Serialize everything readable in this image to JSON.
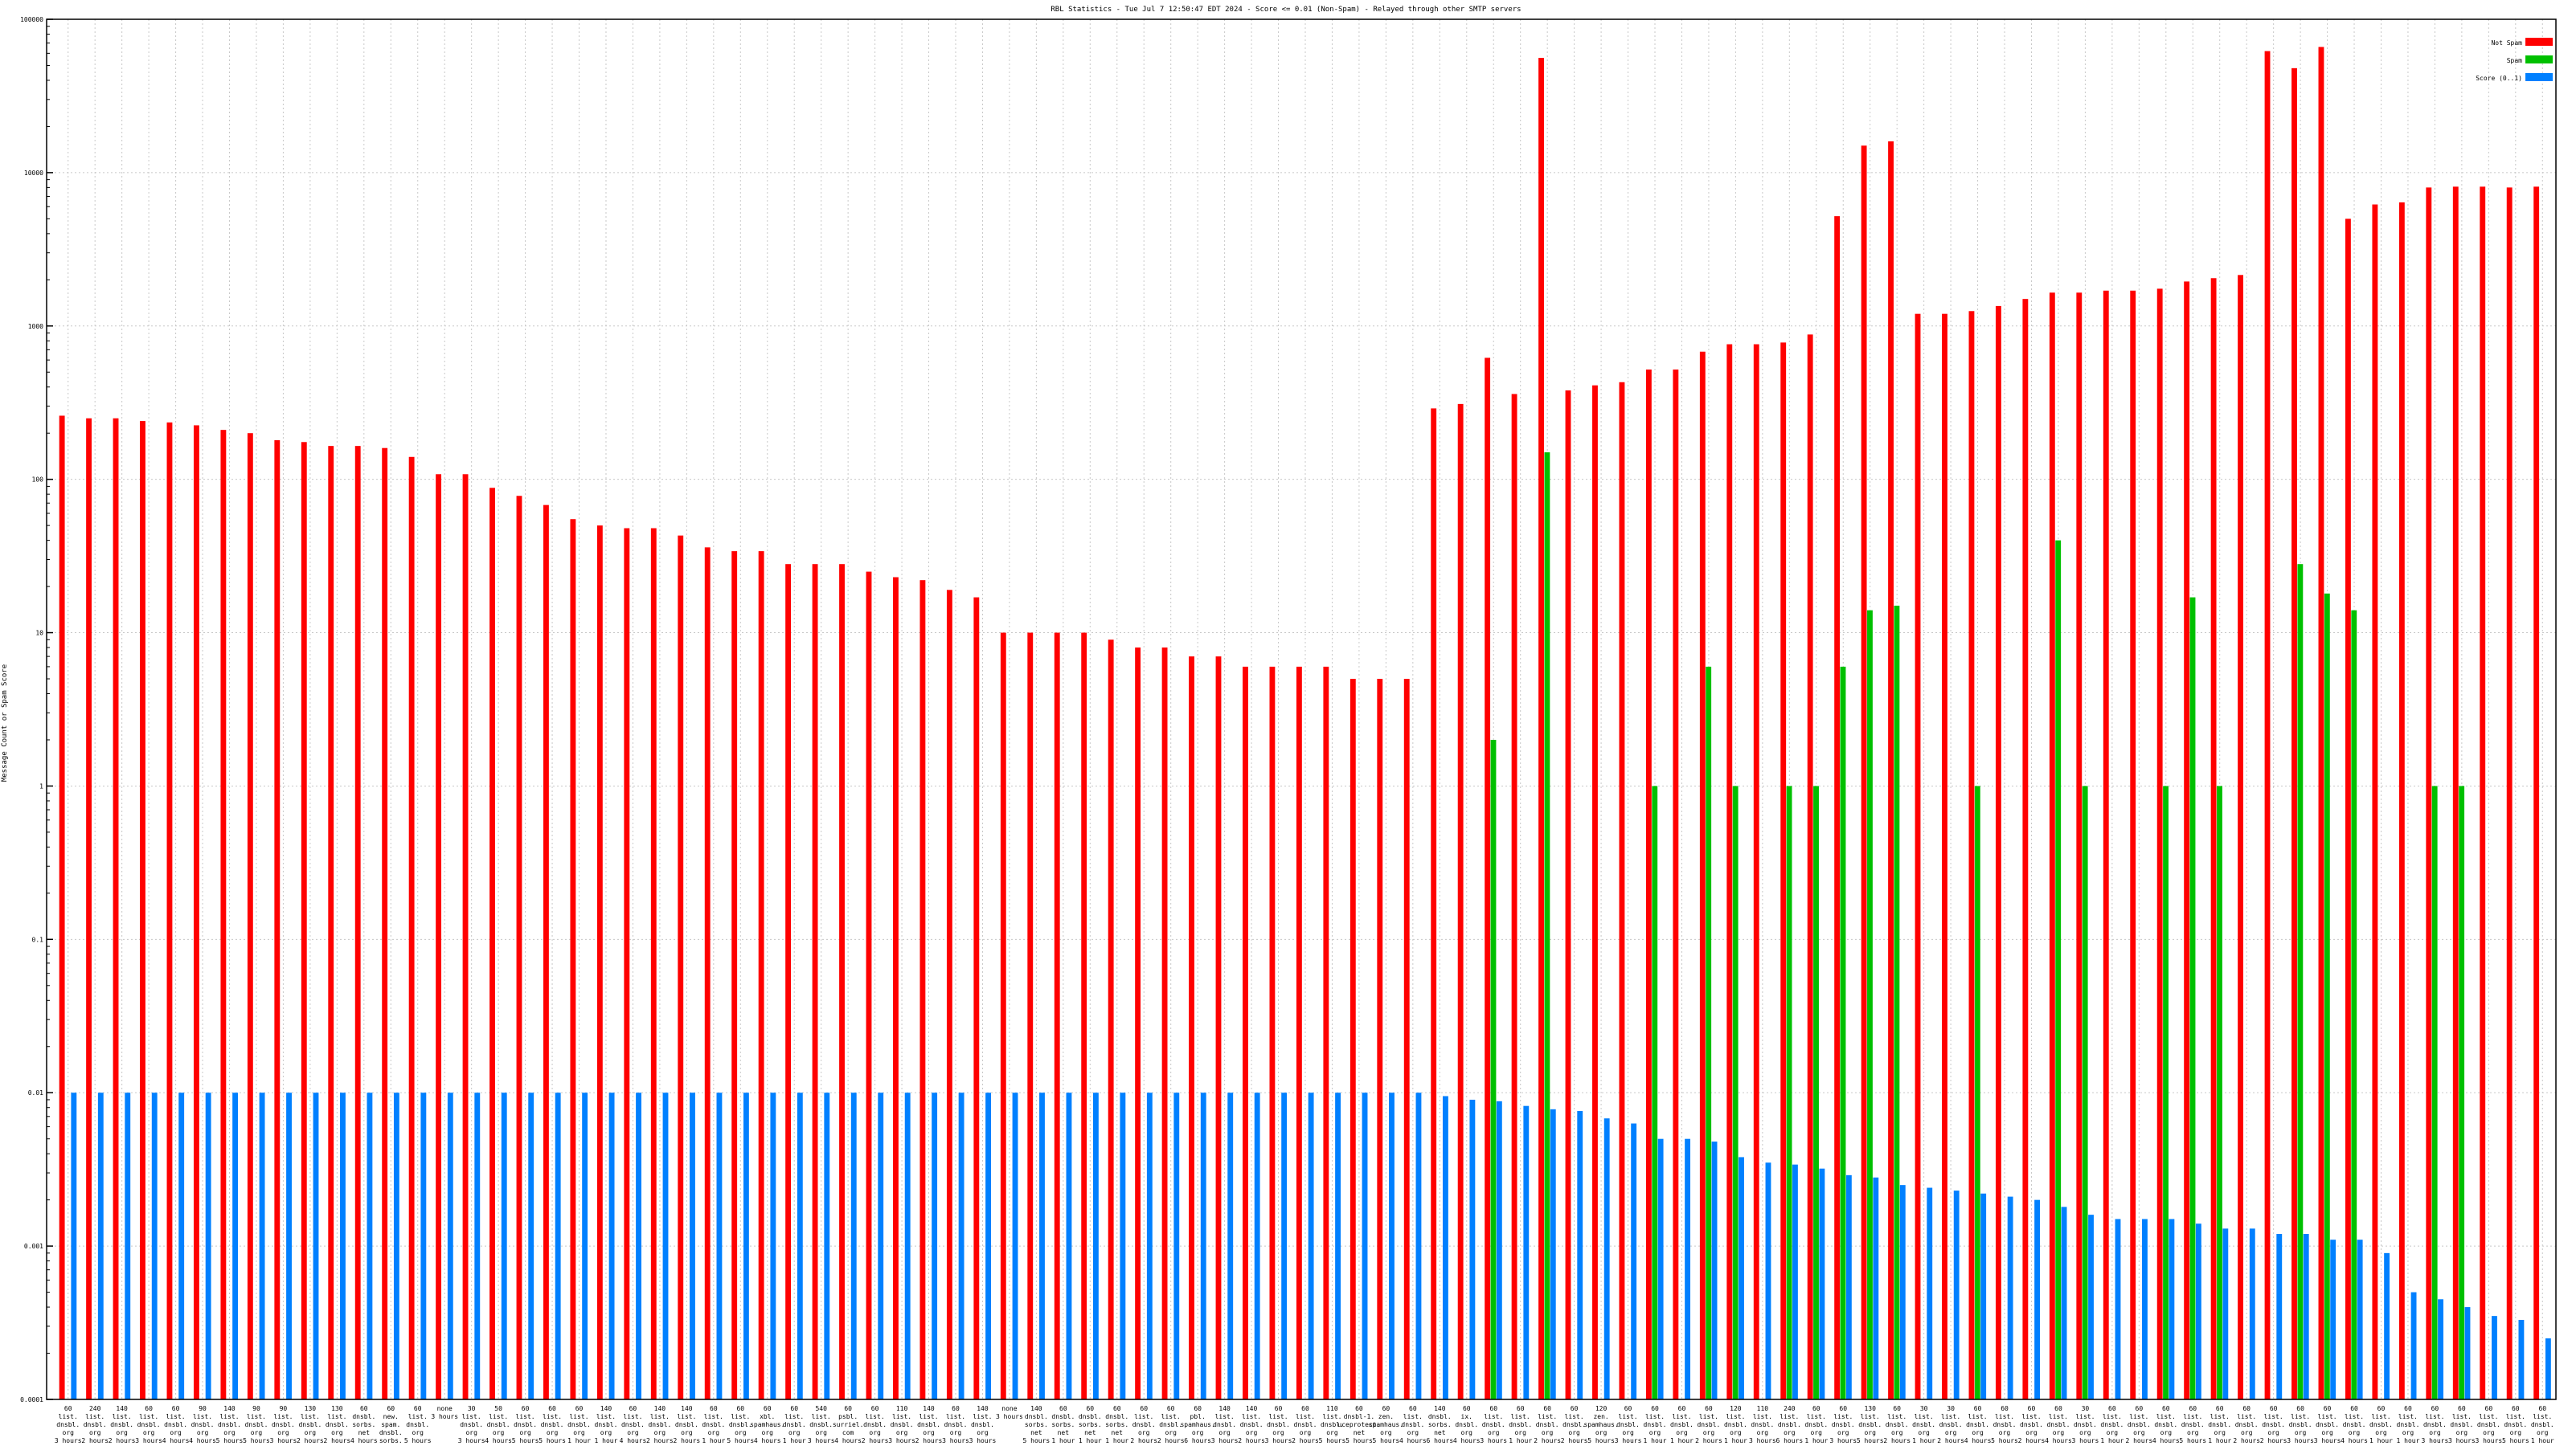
{
  "chart_data": {
    "type": "bar",
    "scale": "log",
    "title": "RBL Statistics - Tue Jul  7 12:50:47 EDT 2024 - Score <= 0.01 (Non-Spam) - Relayed through other SMTP servers",
    "ylabel": "Message Count or Spam Score",
    "ylim": [
      0.0001,
      100000
    ],
    "y_ticks": [
      {
        "value": 0.0001,
        "label": "0.0001"
      },
      {
        "value": 0.001,
        "label": "0.001"
      },
      {
        "value": 0.01,
        "label": "0.01"
      },
      {
        "value": 0.1,
        "label": "0.1"
      },
      {
        "value": 1,
        "label": "1"
      },
      {
        "value": 10,
        "label": "10"
      },
      {
        "value": 100,
        "label": "100"
      },
      {
        "value": 1000,
        "label": "1000"
      },
      {
        "value": 10000,
        "label": "10000"
      },
      {
        "value": 100000,
        "label": "100000"
      }
    ],
    "grid": true,
    "legend_position": "top-right",
    "colors": {
      "non_spam": "#ff0000",
      "spam": "#00c000",
      "score": "#0080ff"
    },
    "categories": [
      [
        "60",
        "list.",
        "dnsbl.",
        "org",
        "3 hours"
      ],
      [
        "240",
        "list.",
        "dnsbl.",
        "org",
        "2 hours"
      ],
      [
        "140",
        "list.",
        "dnsbl.",
        "org",
        "2 hours"
      ],
      [
        "60",
        "list.",
        "dnsbl.",
        "org",
        "3 hours"
      ],
      [
        "60",
        "list.",
        "dnsbl.",
        "org",
        "4 hours"
      ],
      [
        "90",
        "list.",
        "dnsbl.",
        "org",
        "4 hours"
      ],
      [
        "140",
        "list.",
        "dnsbl.",
        "org",
        "5 hours"
      ],
      [
        "90",
        "list.",
        "dnsbl.",
        "org",
        "5 hours"
      ],
      [
        "90",
        "list.",
        "dnsbl.",
        "org",
        "3 hours"
      ],
      [
        "130",
        "list.",
        "dnsbl.",
        "org",
        "2 hours"
      ],
      [
        "130",
        "list.",
        "dnsbl.",
        "org",
        "2 hours"
      ],
      [
        "60",
        "dnsbl.",
        "sorbs.",
        "net",
        "4 hours"
      ],
      [
        "60",
        "new.",
        "spam.",
        "dnsbl.",
        "sorbs.",
        "net",
        "4 hours"
      ],
      [
        "60",
        "list.",
        "dnsbl.",
        "org",
        "5 hours"
      ],
      [
        "none",
        "3 hours"
      ],
      [
        "30",
        "list.",
        "dnsbl.",
        "org",
        "3 hours"
      ],
      [
        "50",
        "list.",
        "dnsbl.",
        "org",
        "4 hours"
      ],
      [
        "60",
        "list.",
        "dnsbl.",
        "org",
        "5 hours"
      ],
      [
        "60",
        "list.",
        "dnsbl.",
        "org",
        "5 hours"
      ],
      [
        "60",
        "list.",
        "dnsbl.",
        "org",
        "1 hour"
      ],
      [
        "140",
        "list.",
        "dnsbl.",
        "org",
        "1 hour"
      ],
      [
        "60",
        "list.",
        "dnsbl.",
        "org",
        "4 hours"
      ],
      [
        "140",
        "list.",
        "dnsbl.",
        "org",
        "2 hours"
      ],
      [
        "140",
        "list.",
        "dnsbl.",
        "org",
        "2 hours"
      ],
      [
        "60",
        "list.",
        "dnsbl.",
        "org",
        "1 hour"
      ],
      [
        "60",
        "list.",
        "dnsbl.",
        "org",
        "5 hours"
      ],
      [
        "60",
        "xbl.",
        "spamhaus.",
        "org",
        "4 hours"
      ],
      [
        "60",
        "list.",
        "dnsbl.",
        "org",
        "1 hour"
      ],
      [
        "540",
        "list.",
        "dnsbl.",
        "org",
        "3 hours"
      ],
      [
        "60",
        "psbl.",
        "surriel.",
        "com",
        "4 hours"
      ],
      [
        "60",
        "list.",
        "dnsbl.",
        "org",
        "2 hours"
      ],
      [
        "110",
        "list.",
        "dnsbl.",
        "org",
        "3 hours"
      ],
      [
        "140",
        "list.",
        "dnsbl.",
        "org",
        "2 hours"
      ],
      [
        "60",
        "list.",
        "dnsbl.",
        "org",
        "3 hours"
      ],
      [
        "140",
        "list.",
        "dnsbl.",
        "org",
        "3 hours"
      ],
      [
        "none",
        "3 hours"
      ],
      [
        "140",
        "dnsbl.",
        "sorbs.",
        "net",
        "5 hours"
      ],
      [
        "60",
        "dnsbl.",
        "sorbs.",
        "net",
        "1 hour"
      ],
      [
        "60",
        "dnsbl.",
        "sorbs.",
        "net",
        "1 hour"
      ],
      [
        "60",
        "dnsbl.",
        "sorbs.",
        "net",
        "1 hour"
      ],
      [
        "60",
        "list.",
        "dnsbl.",
        "org",
        "2 hours"
      ],
      [
        "60",
        "list.",
        "dnsbl.",
        "org",
        "2 hours"
      ],
      [
        "60",
        "pbl.",
        "spamhaus.",
        "org",
        "6 hours"
      ],
      [
        "140",
        "list.",
        "dnsbl.",
        "org",
        "3 hours"
      ],
      [
        "140",
        "list.",
        "dnsbl.",
        "org",
        "2 hours"
      ],
      [
        "60",
        "list.",
        "dnsbl.",
        "org",
        "3 hours"
      ],
      [
        "60",
        "list.",
        "dnsbl.",
        "org",
        "2 hours"
      ],
      [
        "110",
        "list.",
        "dnsbl.",
        "org",
        "5 hours"
      ],
      [
        "60",
        "dnsbl-1.",
        "uceprotect.",
        "net",
        "5 hours"
      ],
      [
        "60",
        "zen.",
        "spamhaus.",
        "org",
        "5 hours"
      ],
      [
        "60",
        "list.",
        "dnsbl.",
        "org",
        "4 hours"
      ],
      [
        "140",
        "dnsbl.",
        "sorbs.",
        "net",
        "6 hours"
      ],
      [
        "60",
        "ix.",
        "dnsbl.",
        "org",
        "4 hours"
      ],
      [
        "60",
        "list.",
        "dnsbl.",
        "org",
        "3 hours"
      ],
      [
        "60",
        "list.",
        "dnsbl.",
        "org",
        "1 hour"
      ],
      [
        "60",
        "list.",
        "dnsbl.",
        "org",
        "2 hours"
      ],
      [
        "60",
        "list.",
        "dnsbl.",
        "org",
        "2 hours"
      ],
      [
        "120",
        "zen.",
        "spamhaus.",
        "org",
        "5 hours"
      ],
      [
        "60",
        "list.",
        "dnsbl.",
        "org",
        "3 hours"
      ],
      [
        "60",
        "list.",
        "dnsbl.",
        "org",
        "1 hour"
      ],
      [
        "60",
        "list.",
        "dnsbl.",
        "org",
        "1 hour"
      ],
      [
        "60",
        "list.",
        "dnsbl.",
        "org",
        "2 hours"
      ],
      [
        "120",
        "list.",
        "dnsbl.",
        "org",
        "1 hour"
      ],
      [
        "110",
        "list.",
        "dnsbl.",
        "org",
        "3 hours"
      ],
      [
        "240",
        "list.",
        "dnsbl.",
        "org",
        "6 hours"
      ],
      [
        "60",
        "list.",
        "dnsbl.",
        "org",
        "1 hour"
      ],
      [
        "60",
        "list.",
        "dnsbl.",
        "org",
        "3 hours"
      ],
      [
        "130",
        "list.",
        "dnsbl.",
        "org",
        "5 hours"
      ],
      [
        "60",
        "list.",
        "dnsbl.",
        "org",
        "2 hours"
      ],
      [
        "30",
        "list.",
        "dnsbl.",
        "org",
        "1 hour"
      ],
      [
        "30",
        "list.",
        "dnsbl.",
        "org",
        "2 hours"
      ],
      [
        "60",
        "list.",
        "dnsbl.",
        "org",
        "4 hours"
      ],
      [
        "60",
        "list.",
        "dnsbl.",
        "org",
        "5 hours"
      ],
      [
        "60",
        "list.",
        "dnsbl.",
        "org",
        "2 hours"
      ],
      [
        "60",
        "list.",
        "dnsbl.",
        "org",
        "4 hours"
      ],
      [
        "30",
        "list.",
        "dnsbl.",
        "org",
        "3 hours"
      ],
      [
        "60",
        "list.",
        "dnsbl.",
        "org",
        "1 hour"
      ],
      [
        "60",
        "list.",
        "dnsbl.",
        "org",
        "2 hours"
      ],
      [
        "60",
        "list.",
        "dnsbl.",
        "org",
        "4 hours"
      ],
      [
        "60",
        "list.",
        "dnsbl.",
        "org",
        "5 hours"
      ],
      [
        "60",
        "list.",
        "dnsbl.",
        "org",
        "1 hour"
      ],
      [
        "60",
        "list.",
        "dnsbl.",
        "org",
        "2 hours"
      ],
      [
        "60",
        "list.",
        "dnsbl.",
        "org",
        "2 hours"
      ],
      [
        "60",
        "list.",
        "dnsbl.",
        "org",
        "3 hours"
      ],
      [
        "60",
        "list.",
        "dnsbl.",
        "org",
        "3 hours"
      ],
      [
        "60",
        "list.",
        "dnsbl.",
        "org",
        "4 hours"
      ],
      [
        "60",
        "list.",
        "dnsbl.",
        "org",
        "1 hour"
      ],
      [
        "60",
        "list.",
        "dnsbl.",
        "org",
        "1 hour"
      ],
      [
        "60",
        "list.",
        "dnsbl.",
        "org",
        "3 hours"
      ],
      [
        "60",
        "list.",
        "dnsbl.",
        "org",
        "3 hours"
      ],
      [
        "60",
        "list.",
        "dnsbl.",
        "org",
        "3 hours"
      ],
      [
        "60",
        "list.",
        "dnsbl.",
        "org",
        "5 hours"
      ],
      [
        "60",
        "list.",
        "dnsbl.",
        "org",
        "1 hour"
      ]
    ],
    "series": [
      {
        "name": "Not Spam",
        "values": [
          260,
          250,
          250,
          240,
          235,
          225,
          210,
          200,
          180,
          175,
          165,
          165,
          160,
          140,
          108,
          108,
          88,
          78,
          68,
          55,
          50,
          48,
          48,
          43,
          36,
          34,
          34,
          28,
          28,
          28,
          25,
          23,
          22,
          19,
          17,
          10,
          10,
          10,
          10,
          9,
          8,
          8,
          7,
          7,
          6,
          6,
          6,
          6,
          5,
          5,
          5,
          290,
          310,
          620,
          360,
          56000,
          380,
          410,
          430,
          520,
          520,
          680,
          760,
          760,
          780,
          880,
          5200,
          15000,
          16000,
          1200,
          1200,
          1250,
          1350,
          1500,
          1650,
          1650,
          1700,
          1700,
          1750,
          1950,
          2050,
          2150,
          62000,
          48000,
          66000,
          5000,
          6200,
          6400,
          8000,
          8100,
          8100,
          8000,
          8100
        ]
      },
      {
        "name": "Spam",
        "values": [
          0,
          0,
          0,
          0,
          0,
          0,
          0,
          0,
          0,
          0,
          0,
          0,
          0,
          0,
          0,
          0,
          0,
          0,
          0,
          0,
          0,
          0,
          0,
          0,
          0,
          0,
          0,
          0,
          0,
          0,
          0,
          0,
          0,
          0,
          0,
          0,
          0,
          0,
          0,
          0,
          0,
          0,
          0,
          0,
          0,
          0,
          0,
          0,
          0,
          0,
          0,
          0,
          0,
          2,
          0,
          150,
          0,
          0,
          0,
          1,
          0,
          6,
          1,
          0,
          1,
          1,
          6,
          14,
          15,
          0,
          0,
          1,
          0,
          0,
          40,
          1,
          0,
          0,
          1,
          17,
          1,
          0,
          0,
          28,
          18,
          14,
          0,
          0,
          1,
          1,
          0,
          0,
          0
        ]
      },
      {
        "name": "Score (0..1)",
        "values": [
          0.01,
          0.01,
          0.01,
          0.01,
          0.01,
          0.01,
          0.01,
          0.01,
          0.01,
          0.01,
          0.01,
          0.01,
          0.01,
          0.01,
          0.01,
          0.01,
          0.01,
          0.01,
          0.01,
          0.01,
          0.01,
          0.01,
          0.01,
          0.01,
          0.01,
          0.01,
          0.01,
          0.01,
          0.01,
          0.01,
          0.01,
          0.01,
          0.01,
          0.01,
          0.01,
          0.01,
          0.01,
          0.01,
          0.01,
          0.01,
          0.01,
          0.01,
          0.01,
          0.01,
          0.01,
          0.01,
          0.01,
          0.01,
          0.01,
          0.01,
          0.01,
          0.0095,
          0.009,
          0.0088,
          0.0082,
          0.0078,
          0.0076,
          0.0068,
          0.0063,
          0.005,
          0.005,
          0.0048,
          0.0038,
          0.0035,
          0.0034,
          0.0032,
          0.0029,
          0.0028,
          0.0025,
          0.0024,
          0.0023,
          0.0022,
          0.0021,
          0.002,
          0.0018,
          0.0016,
          0.0015,
          0.0015,
          0.0015,
          0.0014,
          0.0013,
          0.0013,
          0.0012,
          0.0012,
          0.0011,
          0.0011,
          0.0009,
          0.0005,
          0.00045,
          0.0004,
          0.00035,
          0.00033,
          0.00025
        ]
      }
    ]
  }
}
